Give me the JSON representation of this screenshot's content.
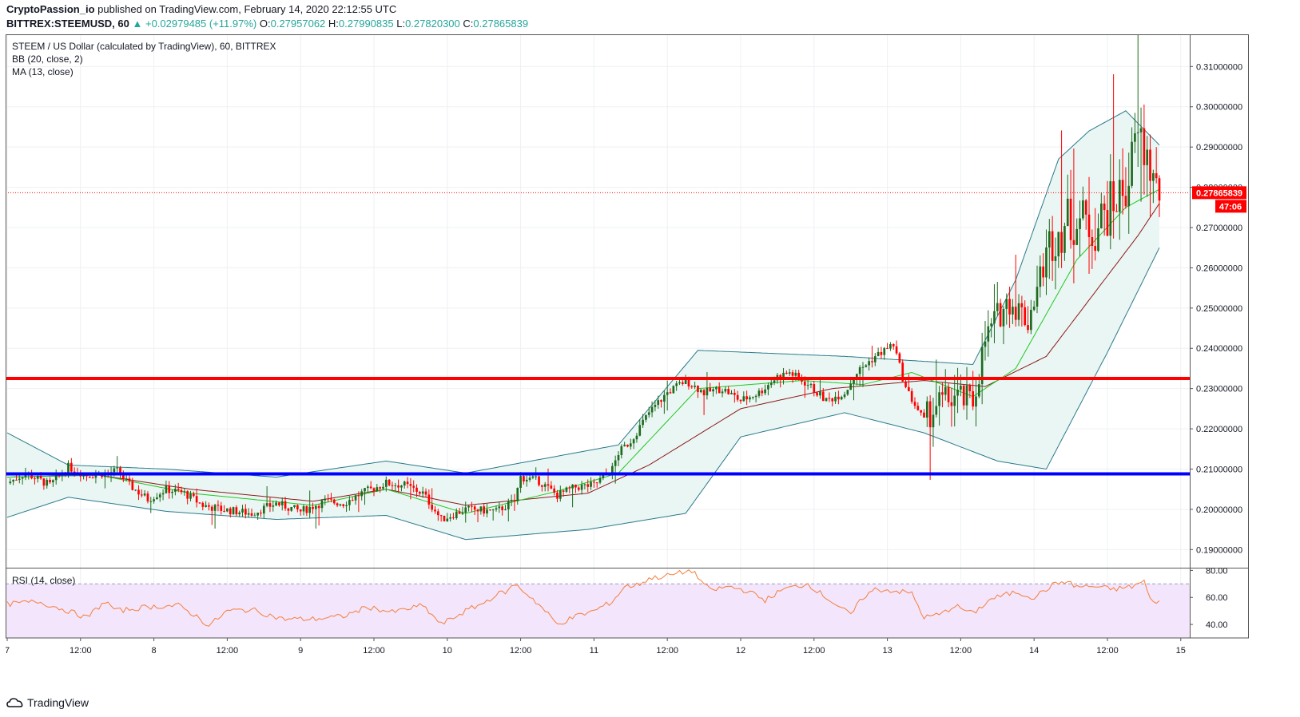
{
  "header": {
    "author": "CryptoPassion_io",
    "published_text": "published on TradingView.com, February 14, 2020 22:12:55 UTC",
    "symbol": "BITTREX:STEEMUSD, 60",
    "change": "+0.02979485 (+11.97%)",
    "o_label": "O:",
    "o_value": "0.27957062",
    "h_label": "H:",
    "h_value": "0.27990835",
    "l_label": "L:",
    "l_value": "0.27820300",
    "c_label": "C:",
    "c_value": "0.27865839"
  },
  "legend": {
    "title": "STEEM / US Dollar (calculated by TradingView), 60, BITTREX",
    "bb": "BB (20, close, 2)",
    "ma": "MA (13, close)",
    "rsi": "RSI (14, close)"
  },
  "price_badge": "0.27865839",
  "countdown_badge": "47:06",
  "footer": {
    "brand": "TradingView"
  },
  "colors": {
    "up": "#1e6b1e",
    "down": "#ff0000",
    "bb_line": "#2a7a8c",
    "bb_fill": "#e8f5f3",
    "ma": "#22c722",
    "basis": "#8b1a1a",
    "support": "#0000ff",
    "resistance": "#ff0000",
    "rsi": "#f57f3c",
    "rsi_band": "#f3e5fb"
  },
  "chart_data": [
    {
      "type": "candlestick",
      "y_ticks": [
        "0.31000000",
        "0.30000000",
        "0.29000000",
        "0.28000000",
        "0.27000000",
        "0.26000000",
        "0.25000000",
        "0.24000000",
        "0.23000000",
        "0.22000000",
        "0.21000000",
        "0.20000000",
        "0.19000000"
      ],
      "ylim": [
        0.1855,
        0.318
      ],
      "x_ticks": [
        "7",
        "12:00",
        "8",
        "12:00",
        "9",
        "12:00",
        "10",
        "12:00",
        "11",
        "12:00",
        "12",
        "12:00",
        "13",
        "12:00",
        "14",
        "12:00",
        "15"
      ],
      "horizontal_lines": [
        {
          "name": "resistance",
          "value": 0.2325
        },
        {
          "name": "support",
          "value": 0.2088
        }
      ],
      "last_price": 0.27865839,
      "anchors": [
        [
          0,
          0.2065
        ],
        [
          6,
          0.209
        ],
        [
          14,
          0.206
        ],
        [
          20,
          0.2105
        ],
        [
          26,
          0.2085
        ],
        [
          32,
          0.209
        ],
        [
          36,
          0.2095
        ],
        [
          40,
          0.206
        ],
        [
          46,
          0.2025
        ],
        [
          52,
          0.205
        ],
        [
          58,
          0.204
        ],
        [
          64,
          0.201
        ],
        [
          70,
          0.2
        ],
        [
          80,
          0.199
        ],
        [
          88,
          0.2015
        ],
        [
          96,
          0.1995
        ],
        [
          104,
          0.202
        ],
        [
          110,
          0.2015
        ],
        [
          116,
          0.204
        ],
        [
          124,
          0.2065
        ],
        [
          130,
          0.206
        ],
        [
          136,
          0.204
        ],
        [
          142,
          0.1975
        ],
        [
          150,
          0.2
        ],
        [
          160,
          0.1995
        ],
        [
          166,
          0.202
        ],
        [
          168,
          0.208
        ],
        [
          174,
          0.207
        ],
        [
          180,
          0.2035
        ],
        [
          186,
          0.2055
        ],
        [
          192,
          0.206
        ],
        [
          198,
          0.21
        ],
        [
          200,
          0.214
        ],
        [
          204,
          0.217
        ],
        [
          210,
          0.224
        ],
        [
          216,
          0.229
        ],
        [
          222,
          0.232
        ],
        [
          228,
          0.229
        ],
        [
          234,
          0.23
        ],
        [
          240,
          0.227
        ],
        [
          246,
          0.229
        ],
        [
          252,
          0.233
        ],
        [
          256,
          0.234
        ],
        [
          262,
          0.231
        ],
        [
          268,
          0.227
        ],
        [
          274,
          0.229
        ],
        [
          278,
          0.234
        ],
        [
          284,
          0.238
        ],
        [
          290,
          0.241
        ],
        [
          294,
          0.23
        ],
        [
          300,
          0.222
        ],
        [
          304,
          0.226
        ],
        [
          310,
          0.228
        ],
        [
          316,
          0.2265
        ],
        [
          320,
          0.242
        ],
        [
          324,
          0.248
        ],
        [
          328,
          0.252
        ],
        [
          334,
          0.247
        ],
        [
          338,
          0.258
        ],
        [
          342,
          0.268
        ],
        [
          346,
          0.271
        ],
        [
          350,
          0.272
        ],
        [
          356,
          0.27
        ],
        [
          362,
          0.276
        ],
        [
          366,
          0.28
        ],
        [
          370,
          0.293
        ],
        [
          374,
          0.285
        ],
        [
          376,
          0.279
        ],
        [
          377,
          0.2787
        ]
      ],
      "bb_upper": [
        [
          0,
          0.219
        ],
        [
          20,
          0.211
        ],
        [
          52,
          0.21
        ],
        [
          88,
          0.208
        ],
        [
          124,
          0.212
        ],
        [
          150,
          0.209
        ],
        [
          200,
          0.216
        ],
        [
          226,
          0.2395
        ],
        [
          274,
          0.238
        ],
        [
          316,
          0.236
        ],
        [
          330,
          0.257
        ],
        [
          344,
          0.287
        ],
        [
          354,
          0.294
        ],
        [
          366,
          0.299
        ],
        [
          377,
          0.2905
        ]
      ],
      "bb_lower": [
        [
          0,
          0.198
        ],
        [
          20,
          0.203
        ],
        [
          52,
          0.1995
        ],
        [
          88,
          0.1975
        ],
        [
          124,
          0.1985
        ],
        [
          150,
          0.1925
        ],
        [
          190,
          0.195
        ],
        [
          222,
          0.199
        ],
        [
          240,
          0.218
        ],
        [
          274,
          0.224
        ],
        [
          300,
          0.219
        ],
        [
          324,
          0.212
        ],
        [
          340,
          0.21
        ],
        [
          360,
          0.239
        ],
        [
          377,
          0.265
        ]
      ],
      "ma": [
        [
          0,
          0.208
        ],
        [
          30,
          0.2085
        ],
        [
          60,
          0.204
        ],
        [
          100,
          0.201
        ],
        [
          124,
          0.205
        ],
        [
          150,
          0.199
        ],
        [
          180,
          0.2045
        ],
        [
          200,
          0.209
        ],
        [
          226,
          0.23
        ],
        [
          260,
          0.232
        ],
        [
          280,
          0.231
        ],
        [
          296,
          0.234
        ],
        [
          316,
          0.228
        ],
        [
          330,
          0.235
        ],
        [
          350,
          0.262
        ],
        [
          366,
          0.275
        ],
        [
          377,
          0.2795
        ]
      ],
      "basis": [
        [
          0,
          0.208
        ],
        [
          30,
          0.2085
        ],
        [
          60,
          0.205
        ],
        [
          100,
          0.202
        ],
        [
          124,
          0.205
        ],
        [
          150,
          0.201
        ],
        [
          190,
          0.204
        ],
        [
          210,
          0.211
        ],
        [
          240,
          0.225
        ],
        [
          270,
          0.23
        ],
        [
          300,
          0.232
        ],
        [
          320,
          0.2305
        ],
        [
          340,
          0.238
        ],
        [
          356,
          0.254
        ],
        [
          370,
          0.268
        ],
        [
          377,
          0.276
        ]
      ]
    },
    {
      "type": "line",
      "title": "RSI (14, close)",
      "y_ticks": [
        "80.00",
        "60.00",
        "40.00"
      ],
      "ylim": [
        30,
        82
      ],
      "bands": [
        70,
        30
      ],
      "values": [
        [
          0,
          55
        ],
        [
          10,
          57
        ],
        [
          20,
          50
        ],
        [
          26,
          45
        ],
        [
          32,
          57
        ],
        [
          36,
          50
        ],
        [
          46,
          53
        ],
        [
          56,
          54
        ],
        [
          62,
          46
        ],
        [
          66,
          39
        ],
        [
          72,
          50
        ],
        [
          80,
          51
        ],
        [
          90,
          44
        ],
        [
          100,
          44
        ],
        [
          110,
          46
        ],
        [
          118,
          53
        ],
        [
          126,
          49
        ],
        [
          136,
          54
        ],
        [
          142,
          40
        ],
        [
          150,
          50
        ],
        [
          156,
          56
        ],
        [
          160,
          62
        ],
        [
          164,
          65
        ],
        [
          166,
          70
        ],
        [
          172,
          59
        ],
        [
          176,
          50
        ],
        [
          180,
          40
        ],
        [
          186,
          46
        ],
        [
          192,
          50
        ],
        [
          198,
          57
        ],
        [
          202,
          68
        ],
        [
          206,
          69
        ],
        [
          210,
          74
        ],
        [
          216,
          76
        ],
        [
          220,
          78
        ],
        [
          224,
          80
        ],
        [
          230,
          65
        ],
        [
          236,
          68
        ],
        [
          242,
          65
        ],
        [
          248,
          58
        ],
        [
          254,
          66
        ],
        [
          262,
          70
        ],
        [
          268,
          60
        ],
        [
          276,
          47
        ],
        [
          280,
          60
        ],
        [
          284,
          66
        ],
        [
          290,
          65
        ],
        [
          296,
          63
        ],
        [
          300,
          45
        ],
        [
          306,
          48
        ],
        [
          310,
          54
        ],
        [
          316,
          48
        ],
        [
          322,
          59
        ],
        [
          330,
          64
        ],
        [
          336,
          60
        ],
        [
          342,
          69
        ],
        [
          346,
          72
        ],
        [
          350,
          68
        ],
        [
          356,
          68
        ],
        [
          362,
          66
        ],
        [
          368,
          68
        ],
        [
          372,
          72
        ],
        [
          374,
          58
        ],
        [
          377,
          57
        ]
      ]
    }
  ]
}
